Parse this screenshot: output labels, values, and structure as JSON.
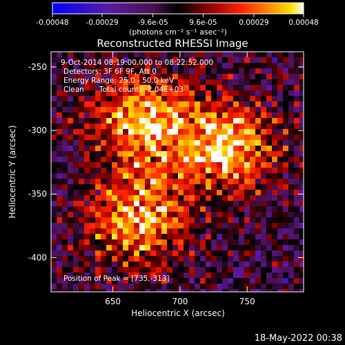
{
  "chart_data": {
    "type": "heatmap",
    "title": "Reconstructed RHESSI Image",
    "xlabel": "Heliocentric X (arcsec)",
    "ylabel": "Heliocentric Y (arcsec)",
    "xlim": [
      604,
      792
    ],
    "ylim": [
      -427,
      -238
    ],
    "x_ticks": [
      650,
      700,
      750
    ],
    "y_ticks": [
      -250,
      -300,
      -350,
      -400
    ],
    "colorbar": {
      "label": "(photons cm⁻² s⁻¹ asec⁻²)",
      "range": [
        -0.00048,
        0.00048
      ],
      "tick_labels": [
        "-0.00048",
        "-0.00029",
        "-9.6e-05",
        "9.6e-05",
        "0.00029",
        "0.00048"
      ],
      "tick_values": [
        -0.00048,
        -0.00029,
        -9.6e-05,
        9.6e-05,
        0.00029,
        0.00048
      ],
      "colormap": "red-temperature with blue-purple negatives"
    },
    "annotations": {
      "time_range": "9-Oct-2014 08:19:00.000 to 08:22:52.000",
      "detectors": "Detectors: 3F 6F 9F, Att 0",
      "energy": "Energy Range: 25.0 - 50.0 keV",
      "clean": "Clean",
      "total_counts": "Total counts: 2.04E+03",
      "peak": "Position of Peak = [735,-313]"
    },
    "sources": [
      {
        "name": "upper-left",
        "x": 672,
        "y": -292,
        "strength": 0.00046
      },
      {
        "name": "upper-right",
        "x": 735,
        "y": -313,
        "strength": 0.00048
      },
      {
        "name": "lower",
        "x": 668,
        "y": -370,
        "strength": 0.00044
      }
    ]
  },
  "footer": {
    "date": "18-May-2022 00:38"
  }
}
